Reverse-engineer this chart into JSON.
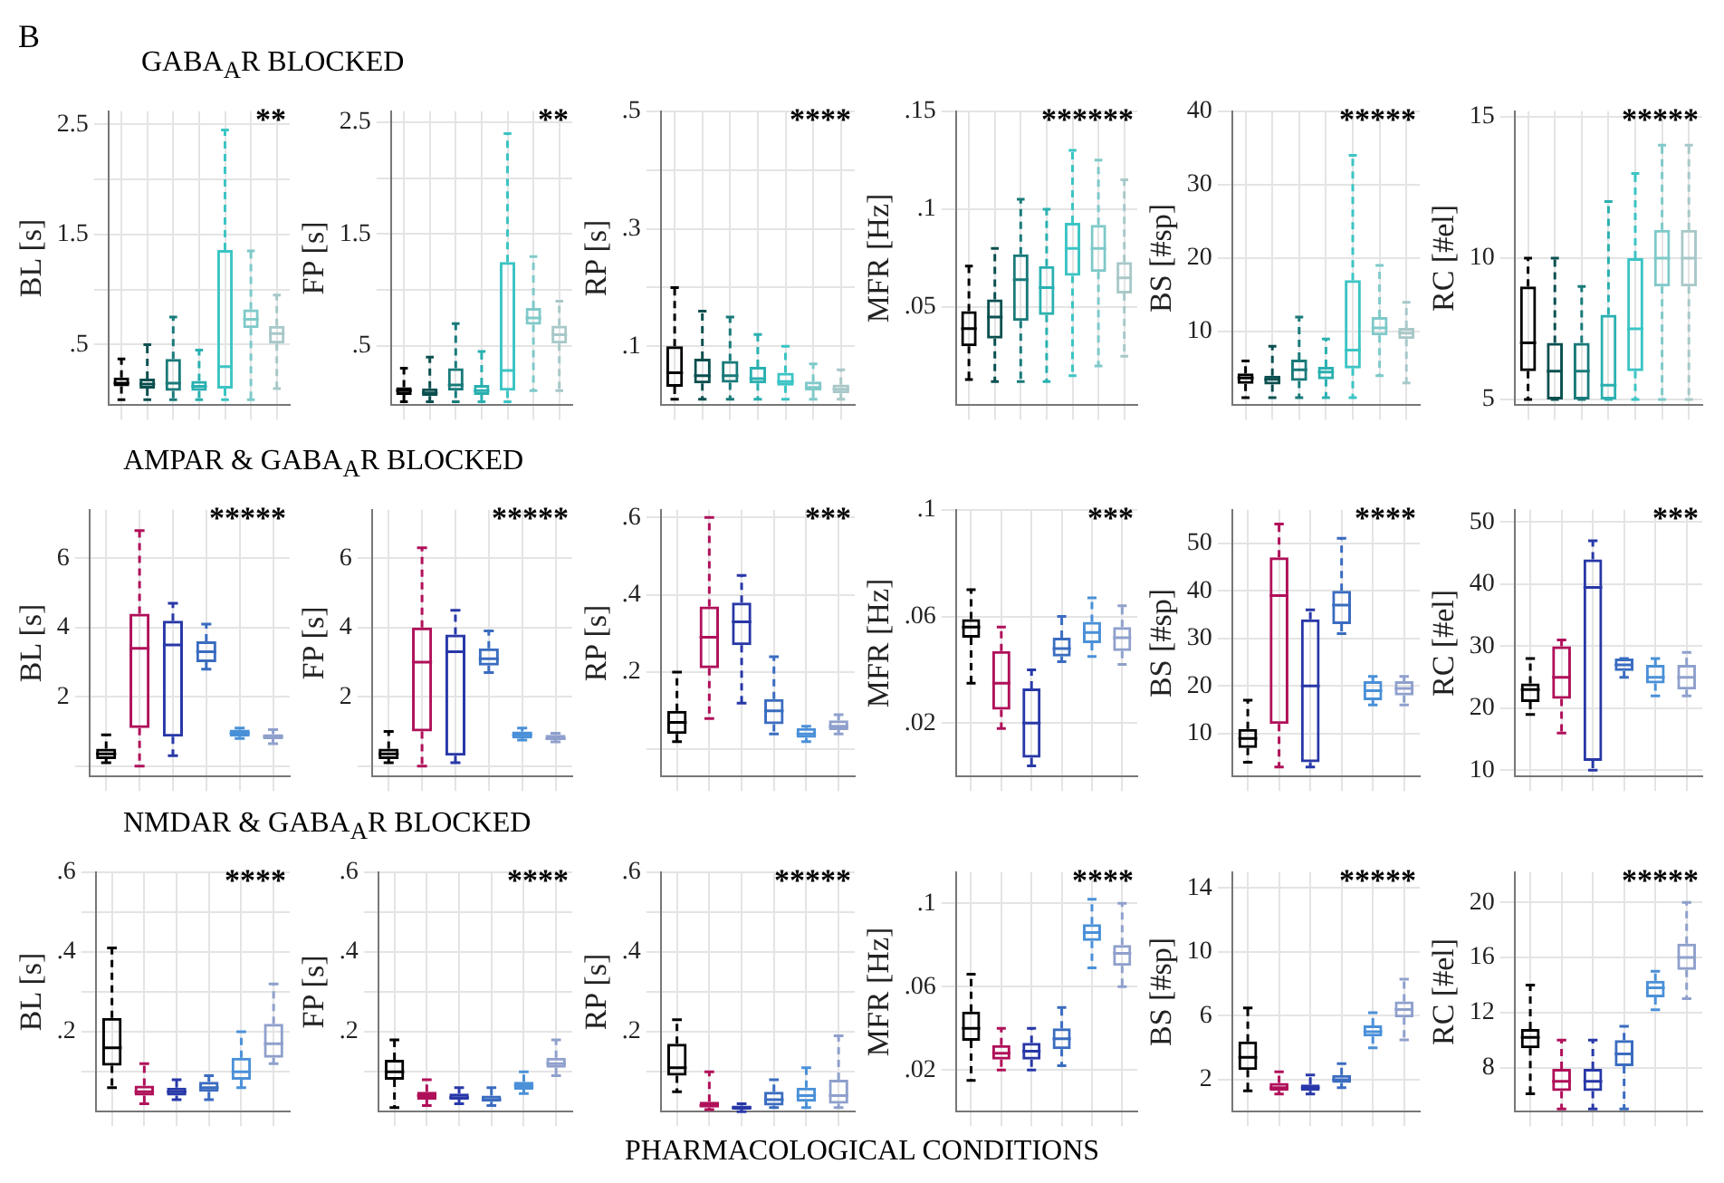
{
  "chart_data": [
    {
      "type": "box",
      "title": "GABA$_{A}$R BLOCKED",
      "ylabel": "BL [s]",
      "annotations": [
        "B",
        "**"
      ],
      "categories": [
        null,
        null,
        null,
        null,
        null,
        null,
        null
      ],
      "colors": [
        "#000000",
        "#0b4f4f",
        "#1a7a7a",
        "#2ab0b0",
        "#3cc4c4",
        "#7fc9c9",
        "#a8c8c8"
      ],
      "ylim": [
        -0.05,
        2.62
      ],
      "yticks": [
        {
          "value": 0.5,
          "label": ".5"
        },
        {
          "value": 1,
          "label": null
        },
        {
          "value": 1.5,
          "label": "1.5"
        },
        {
          "value": 2,
          "label": null
        },
        {
          "value": 2.5,
          "label": "2.5"
        }
      ],
      "grid": true,
      "tick_labels": "y",
      "boxes": [
        {
          "low": 0,
          "q1": 0.12,
          "median": 0.15,
          "q3": 0.2,
          "high": 0.37
        },
        {
          "low": 0,
          "q1": 0.1,
          "median": 0.14,
          "q3": 0.19,
          "high": 0.5
        },
        {
          "low": 0,
          "q1": 0.08,
          "median": 0.15,
          "q3": 0.37,
          "high": 0.75
        },
        {
          "low": 0,
          "q1": 0.08,
          "median": 0.12,
          "q3": 0.17,
          "high": 0.45
        },
        {
          "low": 0,
          "q1": 0.1,
          "median": 0.3,
          "q3": 1.36,
          "high": 2.45
        },
        {
          "low": 0,
          "q1": 0.65,
          "median": 0.73,
          "q3": 0.82,
          "high": 1.35
        },
        {
          "low": 0.1,
          "q1": 0.51,
          "median": 0.6,
          "q3": 0.67,
          "high": 0.95
        }
      ]
    },
    {
      "type": "box",
      "ylabel": "FP [s]",
      "annotations": [
        "**"
      ],
      "categories": [
        null,
        null,
        null,
        null,
        null,
        null,
        null
      ],
      "colors": [
        "#000000",
        "#0b4f4f",
        "#1a7a7a",
        "#2ab0b0",
        "#3cc4c4",
        "#7fc9c9",
        "#a8c8c8"
      ],
      "ylim": [
        -0.03,
        2.6
      ],
      "yticks": [
        {
          "value": 0.5,
          "label": ".5"
        },
        {
          "value": 1,
          "label": null
        },
        {
          "value": 1.5,
          "label": "1.5"
        },
        {
          "value": 2,
          "label": null
        },
        {
          "value": 2.5,
          "label": "2.5"
        }
      ],
      "grid": true,
      "tick_labels": "y",
      "boxes": [
        {
          "low": 0,
          "q1": 0.06,
          "median": 0.1,
          "q3": 0.13,
          "high": 0.3
        },
        {
          "low": 0,
          "q1": 0.05,
          "median": 0.08,
          "q3": 0.12,
          "high": 0.4
        },
        {
          "low": 0,
          "q1": 0.1,
          "median": 0.15,
          "q3": 0.3,
          "high": 0.7
        },
        {
          "low": 0,
          "q1": 0.06,
          "median": 0.1,
          "q3": 0.15,
          "high": 0.45
        },
        {
          "low": 0,
          "q1": 0.1,
          "median": 0.28,
          "q3": 1.25,
          "high": 2.4
        },
        {
          "low": 0.1,
          "q1": 0.69,
          "median": 0.75,
          "q3": 0.84,
          "high": 1.3
        },
        {
          "low": 0.1,
          "q1": 0.52,
          "median": 0.6,
          "q3": 0.68,
          "high": 0.9
        }
      ]
    },
    {
      "type": "box",
      "ylabel": "RP [s]",
      "annotations": [
        "****"
      ],
      "categories": [
        null,
        null,
        null,
        null,
        null,
        null,
        null
      ],
      "colors": [
        "#000000",
        "#0b4f4f",
        "#1a7a7a",
        "#2ab0b0",
        "#3cc4c4",
        "#7fc9c9",
        "#a8c8c8"
      ],
      "ylim": [
        0,
        0.5
      ],
      "yticks": [
        {
          "value": 0.1,
          "label": ".1"
        },
        {
          "value": 0.2,
          "label": null
        },
        {
          "value": 0.3,
          "label": ".3"
        },
        {
          "value": 0.4,
          "label": null
        },
        {
          "value": 0.5,
          "label": ".5"
        }
      ],
      "grid": true,
      "tick_labels": "y",
      "boxes": [
        {
          "low": 0.01,
          "q1": 0.031,
          "median": 0.055,
          "q3": 0.1,
          "high": 0.2
        },
        {
          "low": 0.01,
          "q1": 0.037,
          "median": 0.05,
          "q3": 0.079,
          "high": 0.16
        },
        {
          "low": 0.01,
          "q1": 0.038,
          "median": 0.05,
          "q3": 0.075,
          "high": 0.15
        },
        {
          "low": 0.01,
          "q1": 0.037,
          "median": 0.045,
          "q3": 0.065,
          "high": 0.12
        },
        {
          "low": 0.01,
          "q1": 0.033,
          "median": 0.04,
          "q3": 0.055,
          "high": 0.1
        },
        {
          "low": 0.01,
          "q1": 0.025,
          "median": 0.03,
          "q3": 0.04,
          "high": 0.07
        },
        {
          "low": 0.01,
          "q1": 0.02,
          "median": 0.027,
          "q3": 0.035,
          "high": 0.06
        }
      ]
    },
    {
      "type": "box",
      "ylabel": "MFR [Hz]",
      "annotations": [
        "******"
      ],
      "categories": [
        null,
        null,
        null,
        null,
        null,
        null,
        null
      ],
      "colors": [
        "#000000",
        "#0b4f4f",
        "#1a7a7a",
        "#2ab0b0",
        "#3cc4c4",
        "#7fc9c9",
        "#a8c8c8"
      ],
      "ylim": [
        0,
        0.15
      ],
      "yticks": [
        {
          "value": 0.05,
          "label": ".05"
        },
        {
          "value": 0.1,
          "label": ".1"
        },
        {
          "value": 0.15,
          "label": ".15"
        }
      ],
      "grid": true,
      "tick_labels": "y",
      "boxes": [
        {
          "low": 0.013,
          "q1": 0.03,
          "median": 0.039,
          "q3": 0.048,
          "high": 0.071
        },
        {
          "low": 0.012,
          "q1": 0.034,
          "median": 0.045,
          "q3": 0.054,
          "high": 0.08
        },
        {
          "low": 0.012,
          "q1": 0.043,
          "median": 0.064,
          "q3": 0.077,
          "high": 0.105
        },
        {
          "low": 0.012,
          "q1": 0.046,
          "median": 0.06,
          "q3": 0.071,
          "high": 0.1
        },
        {
          "low": 0.015,
          "q1": 0.066,
          "median": 0.08,
          "q3": 0.093,
          "high": 0.13
        },
        {
          "low": 0.02,
          "q1": 0.068,
          "median": 0.08,
          "q3": 0.092,
          "high": 0.125
        },
        {
          "low": 0.025,
          "q1": 0.057,
          "median": 0.065,
          "q3": 0.073,
          "high": 0.115
        }
      ]
    },
    {
      "type": "box",
      "ylabel": "BS [#sp]",
      "annotations": [
        "*****"
      ],
      "categories": [
        null,
        null,
        null,
        null,
        null,
        null,
        null
      ],
      "colors": [
        "#000000",
        "#0b4f4f",
        "#1a7a7a",
        "#2ab0b0",
        "#3cc4c4",
        "#7fc9c9",
        "#a8c8c8"
      ],
      "ylim": [
        0,
        40
      ],
      "yticks": [
        10,
        20,
        30,
        40
      ],
      "grid": true,
      "tick_labels": "y",
      "boxes": [
        {
          "low": 1,
          "q1": 2.9,
          "median": 3.7,
          "q3": 4.3,
          "high": 6
        },
        {
          "low": 1,
          "q1": 2.8,
          "median": 3.5,
          "q3": 4,
          "high": 8
        },
        {
          "low": 1,
          "q1": 3.3,
          "median": 4.8,
          "q3": 6.2,
          "high": 12
        },
        {
          "low": 1,
          "q1": 3.5,
          "median": 4.5,
          "q3": 5.2,
          "high": 9
        },
        {
          "low": 1,
          "q1": 5,
          "median": 7.5,
          "q3": 17,
          "high": 34
        },
        {
          "low": 4,
          "q1": 9.5,
          "median": 10.5,
          "q3": 12,
          "high": 19
        },
        {
          "low": 3,
          "q1": 9,
          "median": 9.8,
          "q3": 10.5,
          "high": 14
        }
      ]
    },
    {
      "type": "box",
      "ylabel": "RC [#el]",
      "annotations": [
        "*****"
      ],
      "categories": [
        null,
        null,
        null,
        null,
        null,
        null,
        null
      ],
      "colors": [
        "#000000",
        "#0b4f4f",
        "#1a7a7a",
        "#2ab0b0",
        "#3cc4c4",
        "#7fc9c9",
        "#a8c8c8"
      ],
      "ylim": [
        4.8,
        15.2
      ],
      "yticks": [
        5,
        10,
        15
      ],
      "grid": true,
      "tick_labels": "y",
      "boxes": [
        {
          "low": 5,
          "q1": 6,
          "median": 7,
          "q3": 9,
          "high": 10
        },
        {
          "low": 5,
          "q1": 5,
          "median": 6,
          "q3": 7,
          "high": 10
        },
        {
          "low": 5,
          "q1": 5,
          "median": 6,
          "q3": 7,
          "high": 9
        },
        {
          "low": 5,
          "q1": 5,
          "median": 5.5,
          "q3": 8,
          "high": 12
        },
        {
          "low": 5,
          "q1": 6,
          "median": 7.5,
          "q3": 10,
          "high": 13
        },
        {
          "low": 5,
          "q1": 9,
          "median": 10,
          "q3": 11,
          "high": 14
        },
        {
          "low": 5,
          "q1": 9,
          "median": 10,
          "q3": 11,
          "high": 14
        }
      ]
    },
    {
      "type": "box",
      "title": "AMPAR & GABA$_{A}$R BLOCKED",
      "ylabel": "BL [s]",
      "annotations": [
        "*****"
      ],
      "categories": [
        null,
        null,
        null,
        null,
        null,
        null
      ],
      "colors": [
        "#000000",
        "#b0105a",
        "#2838a8",
        "#3a6cc0",
        "#4a90d8",
        "#8fa0cc"
      ],
      "ylim": [
        -0.3,
        7.4
      ],
      "yticks": [
        {
          "value": 0,
          "label": null
        },
        {
          "value": 2,
          "label": "2"
        },
        {
          "value": 4,
          "label": "4"
        },
        {
          "value": 6,
          "label": "6"
        }
      ],
      "grid": true,
      "tick_labels": "y",
      "boxes": [
        {
          "low": 0.1,
          "q1": 0.2,
          "median": 0.35,
          "q3": 0.5,
          "high": 0.9
        },
        {
          "low": 0,
          "q1": 1.1,
          "median": 3.4,
          "q3": 4.4,
          "high": 6.8
        },
        {
          "low": 0.3,
          "q1": 0.85,
          "median": 3.5,
          "q3": 4.2,
          "high": 4.7
        },
        {
          "low": 2.8,
          "q1": 3,
          "median": 3.3,
          "q3": 3.6,
          "high": 4.1
        },
        {
          "low": 0.8,
          "q1": 0.85,
          "median": 0.95,
          "q3": 1.05,
          "high": 1.1
        },
        {
          "low": 0.65,
          "q1": 0.78,
          "median": 0.85,
          "q3": 0.92,
          "high": 1.05
        }
      ]
    },
    {
      "type": "box",
      "ylabel": "FP [s]",
      "annotations": [
        "*****"
      ],
      "categories": [
        null,
        null,
        null,
        null,
        null,
        null
      ],
      "colors": [
        "#000000",
        "#b0105a",
        "#2838a8",
        "#3a6cc0",
        "#4a90d8",
        "#8fa0cc"
      ],
      "ylim": [
        -0.3,
        7.4
      ],
      "yticks": [
        {
          "value": 0,
          "label": null
        },
        {
          "value": 2,
          "label": "2"
        },
        {
          "value": 4,
          "label": "4"
        },
        {
          "value": 6,
          "label": "6"
        }
      ],
      "grid": true,
      "tick_labels": "y",
      "boxes": [
        {
          "low": 0.1,
          "q1": 0.2,
          "median": 0.35,
          "q3": 0.5,
          "high": 1
        },
        {
          "low": 0,
          "q1": 1,
          "median": 3,
          "q3": 4,
          "high": 6.3
        },
        {
          "low": 0.1,
          "q1": 0.3,
          "median": 3.3,
          "q3": 3.8,
          "high": 4.5
        },
        {
          "low": 2.7,
          "q1": 2.9,
          "median": 3.1,
          "q3": 3.4,
          "high": 3.9
        },
        {
          "low": 0.75,
          "q1": 0.8,
          "median": 0.9,
          "q3": 1,
          "high": 1.1
        },
        {
          "low": 0.7,
          "q1": 0.75,
          "median": 0.8,
          "q3": 0.9,
          "high": 0.95
        }
      ]
    },
    {
      "type": "box",
      "ylabel": "RP [s]",
      "annotations": [
        "***"
      ],
      "categories": [
        null,
        null,
        null,
        null,
        null,
        null
      ],
      "colors": [
        "#000000",
        "#b0105a",
        "#2838a8",
        "#3a6cc0",
        "#4a90d8",
        "#8fa0cc"
      ],
      "ylim": [
        -0.07,
        0.62
      ],
      "yticks": [
        {
          "value": 0,
          "label": null
        },
        {
          "value": 0.2,
          "label": ".2"
        },
        {
          "value": 0.4,
          "label": ".4"
        },
        {
          "value": 0.6,
          "label": ".6"
        }
      ],
      "grid": true,
      "tick_labels": "y",
      "boxes": [
        {
          "low": 0.02,
          "q1": 0.04,
          "median": 0.07,
          "q3": 0.1,
          "high": 0.2
        },
        {
          "low": 0.08,
          "q1": 0.21,
          "median": 0.29,
          "q3": 0.37,
          "high": 0.6
        },
        {
          "low": 0.12,
          "q1": 0.27,
          "median": 0.33,
          "q3": 0.38,
          "high": 0.45
        },
        {
          "low": 0.04,
          "q1": 0.065,
          "median": 0.1,
          "q3": 0.13,
          "high": 0.24
        },
        {
          "low": 0.02,
          "q1": 0.03,
          "median": 0.04,
          "q3": 0.055,
          "high": 0.06
        },
        {
          "low": 0.04,
          "q1": 0.05,
          "median": 0.06,
          "q3": 0.075,
          "high": 0.09
        }
      ]
    },
    {
      "type": "box",
      "ylabel": "MFR [Hz]",
      "annotations": [
        "***"
      ],
      "categories": [
        null,
        null,
        null,
        null,
        null,
        null
      ],
      "colors": [
        "#000000",
        "#b0105a",
        "#2838a8",
        "#3a6cc0",
        "#4a90d8",
        "#8fa0cc"
      ],
      "ylim": [
        0,
        0.1
      ],
      "yticks": [
        {
          "value": 0.02,
          "label": ".02"
        },
        {
          "value": 0.06,
          "label": ".06"
        },
        {
          "value": 0.1,
          "label": ".1"
        }
      ],
      "grid": true,
      "tick_labels": "y",
      "boxes": [
        {
          "low": 0.035,
          "q1": 0.052,
          "median": 0.056,
          "q3": 0.059,
          "high": 0.07
        },
        {
          "low": 0.018,
          "q1": 0.025,
          "median": 0.035,
          "q3": 0.047,
          "high": 0.056
        },
        {
          "low": 0.004,
          "q1": 0.007,
          "median": 0.02,
          "q3": 0.033,
          "high": 0.04
        },
        {
          "low": 0.043,
          "q1": 0.045,
          "median": 0.048,
          "q3": 0.052,
          "high": 0.06
        },
        {
          "low": 0.045,
          "q1": 0.05,
          "median": 0.054,
          "q3": 0.058,
          "high": 0.067
        },
        {
          "low": 0.042,
          "q1": 0.047,
          "median": 0.052,
          "q3": 0.056,
          "high": 0.064
        }
      ]
    },
    {
      "type": "box",
      "ylabel": "BS [#sp]",
      "annotations": [
        "****"
      ],
      "categories": [
        null,
        null,
        null,
        null,
        null,
        null
      ],
      "colors": [
        "#000000",
        "#b0105a",
        "#2838a8",
        "#3a6cc0",
        "#4a90d8",
        "#8fa0cc"
      ],
      "ylim": [
        1,
        57
      ],
      "yticks": [
        10,
        20,
        30,
        40,
        50
      ],
      "grid": true,
      "tick_labels": "y",
      "boxes": [
        {
          "low": 4,
          "q1": 7,
          "median": 9,
          "q3": 11,
          "high": 17
        },
        {
          "low": 3,
          "q1": 12,
          "median": 39,
          "q3": 47,
          "high": 54
        },
        {
          "low": 3,
          "q1": 4,
          "median": 20,
          "q3": 34,
          "high": 36
        },
        {
          "low": 31,
          "q1": 33,
          "median": 37,
          "q3": 40,
          "high": 51
        },
        {
          "low": 16,
          "q1": 17,
          "median": 19,
          "q3": 21,
          "high": 22
        },
        {
          "low": 16,
          "q1": 18,
          "median": 19.5,
          "q3": 21,
          "high": 22
        }
      ]
    },
    {
      "type": "box",
      "ylabel": "RC [#el]",
      "annotations": [
        "***"
      ],
      "categories": [
        null,
        null,
        null,
        null,
        null,
        null
      ],
      "colors": [
        "#000000",
        "#b0105a",
        "#2838a8",
        "#3a6cc0",
        "#4a90d8",
        "#8fa0cc"
      ],
      "ylim": [
        9,
        52
      ],
      "yticks": [
        10,
        20,
        30,
        40,
        50
      ],
      "grid": true,
      "tick_labels": "y",
      "boxes": [
        {
          "low": 19,
          "q1": 21,
          "median": 23,
          "q3": 24,
          "high": 28
        },
        {
          "low": 16,
          "q1": 21.5,
          "median": 25,
          "q3": 30,
          "high": 31
        },
        {
          "low": 10,
          "q1": 11.5,
          "median": 39.5,
          "q3": 44,
          "high": 47
        },
        {
          "low": 25,
          "q1": 26,
          "median": 27,
          "q3": 28,
          "high": 28
        },
        {
          "low": 22,
          "q1": 24,
          "median": 25,
          "q3": 27,
          "high": 28
        },
        {
          "low": 22,
          "q1": 23,
          "median": 25,
          "q3": 27,
          "high": 29
        }
      ]
    },
    {
      "type": "box",
      "title": "NMDAR & GABA$_{A}$R BLOCKED",
      "ylabel": "BL [s]",
      "annotations": [
        "****"
      ],
      "categories": [
        null,
        null,
        null,
        null,
        null,
        null
      ],
      "colors": [
        "#000000",
        "#b0105a",
        "#2838a8",
        "#3a6cc0",
        "#4a90d8",
        "#8fa0cc"
      ],
      "ylim": [
        0,
        0.6
      ],
      "yticks": [
        {
          "value": 0.1,
          "label": null
        },
        {
          "value": 0.2,
          "label": ".2"
        },
        {
          "value": 0.3,
          "label": null
        },
        {
          "value": 0.4,
          "label": ".4"
        },
        {
          "value": 0.5,
          "label": null
        },
        {
          "value": 0.6,
          "label": ".6"
        }
      ],
      "grid": true,
      "tick_labels": "y",
      "boxes": [
        {
          "low": 0.06,
          "q1": 0.115,
          "median": 0.16,
          "q3": 0.235,
          "high": 0.41
        },
        {
          "low": 0.02,
          "q1": 0.04,
          "median": 0.05,
          "q3": 0.065,
          "high": 0.12
        },
        {
          "low": 0.03,
          "q1": 0.04,
          "median": 0.05,
          "q3": 0.06,
          "high": 0.08
        },
        {
          "low": 0.03,
          "q1": 0.05,
          "median": 0.06,
          "q3": 0.075,
          "high": 0.09
        },
        {
          "low": 0.06,
          "q1": 0.08,
          "median": 0.1,
          "q3": 0.135,
          "high": 0.2
        },
        {
          "low": 0.12,
          "q1": 0.135,
          "median": 0.17,
          "q3": 0.22,
          "high": 0.32
        }
      ]
    },
    {
      "type": "box",
      "ylabel": "FP [s]",
      "annotations": [
        "****"
      ],
      "categories": [
        null,
        null,
        null,
        null,
        null,
        null
      ],
      "colors": [
        "#000000",
        "#b0105a",
        "#2838a8",
        "#3a6cc0",
        "#4a90d8",
        "#8fa0cc"
      ],
      "ylim": [
        0,
        0.6
      ],
      "yticks": [
        {
          "value": 0.1,
          "label": null
        },
        {
          "value": 0.2,
          "label": ".2"
        },
        {
          "value": 0.3,
          "label": null
        },
        {
          "value": 0.4,
          "label": ".4"
        },
        {
          "value": 0.5,
          "label": null
        },
        {
          "value": 0.6,
          "label": ".6"
        }
      ],
      "grid": true,
      "tick_labels": "y",
      "boxes": [
        {
          "low": 0.01,
          "q1": 0.08,
          "median": 0.1,
          "q3": 0.13,
          "high": 0.18
        },
        {
          "low": 0.015,
          "q1": 0.03,
          "median": 0.04,
          "q3": 0.05,
          "high": 0.08
        },
        {
          "low": 0.02,
          "q1": 0.03,
          "median": 0.035,
          "q3": 0.045,
          "high": 0.06
        },
        {
          "low": 0.015,
          "q1": 0.025,
          "median": 0.03,
          "q3": 0.04,
          "high": 0.06
        },
        {
          "low": 0.045,
          "q1": 0.055,
          "median": 0.065,
          "q3": 0.075,
          "high": 0.1
        },
        {
          "low": 0.09,
          "q1": 0.11,
          "median": 0.12,
          "q3": 0.135,
          "high": 0.18
        }
      ]
    },
    {
      "type": "box",
      "ylabel": "RP [s]",
      "xlabel": "PHARMACOLOGICAL CONDITIONS",
      "annotations": [
        "*****"
      ],
      "categories": [
        null,
        null,
        null,
        null,
        null,
        null
      ],
      "colors": [
        "#000000",
        "#b0105a",
        "#2838a8",
        "#3a6cc0",
        "#4a90d8",
        "#8fa0cc"
      ],
      "ylim": [
        0,
        0.6
      ],
      "yticks": [
        {
          "value": 0.1,
          "label": null
        },
        {
          "value": 0.2,
          "label": ".2"
        },
        {
          "value": 0.3,
          "label": null
        },
        {
          "value": 0.4,
          "label": ".4"
        },
        {
          "value": 0.5,
          "label": null
        },
        {
          "value": 0.6,
          "label": ".6"
        }
      ],
      "grid": true,
      "tick_labels": "y",
      "boxes": [
        {
          "low": 0.05,
          "q1": 0.09,
          "median": 0.11,
          "q3": 0.17,
          "high": 0.23
        },
        {
          "low": 0.005,
          "q1": 0.01,
          "median": 0.015,
          "q3": 0.025,
          "high": 0.1
        },
        {
          "low": 0,
          "q1": 0.005,
          "median": 0.01,
          "q3": 0.015,
          "high": 0.02
        },
        {
          "low": 0.01,
          "q1": 0.015,
          "median": 0.03,
          "q3": 0.05,
          "high": 0.08
        },
        {
          "low": 0.01,
          "q1": 0.025,
          "median": 0.04,
          "q3": 0.06,
          "high": 0.11
        },
        {
          "low": 0.01,
          "q1": 0.02,
          "median": 0.04,
          "q3": 0.08,
          "high": 0.19
        }
      ]
    },
    {
      "type": "box",
      "ylabel": "MFR [Hz]",
      "annotations": [
        "****"
      ],
      "categories": [
        null,
        null,
        null,
        null,
        null,
        null
      ],
      "colors": [
        "#000000",
        "#b0105a",
        "#2838a8",
        "#3a6cc0",
        "#4a90d8",
        "#8fa0cc"
      ],
      "ylim": [
        0,
        0.115
      ],
      "yticks": [
        {
          "value": 0.02,
          "label": ".02"
        },
        {
          "value": 0.06,
          "label": ".06"
        },
        {
          "value": 0.1,
          "label": ".1"
        }
      ],
      "grid": true,
      "tick_labels": "y",
      "boxes": [
        {
          "low": 0.015,
          "q1": 0.034,
          "median": 0.04,
          "q3": 0.048,
          "high": 0.066
        },
        {
          "low": 0.02,
          "q1": 0.025,
          "median": 0.028,
          "q3": 0.032,
          "high": 0.04
        },
        {
          "low": 0.02,
          "q1": 0.025,
          "median": 0.029,
          "q3": 0.033,
          "high": 0.04
        },
        {
          "low": 0.022,
          "q1": 0.03,
          "median": 0.035,
          "q3": 0.04,
          "high": 0.05
        },
        {
          "low": 0.069,
          "q1": 0.082,
          "median": 0.086,
          "q3": 0.09,
          "high": 0.102
        },
        {
          "low": 0.06,
          "q1": 0.07,
          "median": 0.076,
          "q3": 0.08,
          "high": 0.1
        }
      ]
    },
    {
      "type": "box",
      "ylabel": "BS [#sp]",
      "annotations": [
        "*****"
      ],
      "categories": [
        null,
        null,
        null,
        null,
        null,
        null
      ],
      "colors": [
        "#000000",
        "#b0105a",
        "#2838a8",
        "#3a6cc0",
        "#4a90d8",
        "#8fa0cc"
      ],
      "ylim": [
        0,
        15
      ],
      "yticks": [
        2,
        6,
        10,
        14
      ],
      "grid": true,
      "tick_labels": "y",
      "boxes": [
        {
          "low": 1.3,
          "q1": 2.6,
          "median": 3.4,
          "q3": 4.4,
          "high": 6.5
        },
        {
          "low": 1.1,
          "q1": 1.3,
          "median": 1.5,
          "q3": 1.8,
          "high": 2.5
        },
        {
          "low": 1.1,
          "q1": 1.3,
          "median": 1.5,
          "q3": 1.7,
          "high": 2.3
        },
        {
          "low": 1.5,
          "q1": 1.8,
          "median": 2,
          "q3": 2.3,
          "high": 3
        },
        {
          "low": 4,
          "q1": 4.7,
          "median": 5,
          "q3": 5.4,
          "high": 6.2
        },
        {
          "low": 4.5,
          "q1": 5.9,
          "median": 6.4,
          "q3": 6.9,
          "high": 8.3
        }
      ]
    },
    {
      "type": "box",
      "ylabel": "RC [#el]",
      "annotations": [
        "*****"
      ],
      "categories": [
        null,
        null,
        null,
        null,
        null,
        null
      ],
      "colors": [
        "#000000",
        "#b0105a",
        "#2838a8",
        "#3a6cc0",
        "#4a90d8",
        "#8fa0cc"
      ],
      "ylim": [
        4.8,
        22.2
      ],
      "yticks": [
        8,
        12,
        16,
        20
      ],
      "grid": true,
      "tick_labels": "y",
      "boxes": [
        {
          "low": 6.1,
          "q1": 9.4,
          "median": 10.2,
          "q3": 10.8,
          "high": 14
        },
        {
          "low": 5,
          "q1": 6.3,
          "median": 7,
          "q3": 7.9,
          "high": 10
        },
        {
          "low": 5,
          "q1": 6.3,
          "median": 7,
          "q3": 7.9,
          "high": 10
        },
        {
          "low": 5,
          "q1": 8.1,
          "median": 9,
          "q3": 10,
          "high": 11
        },
        {
          "low": 12.2,
          "q1": 13.1,
          "median": 13.8,
          "q3": 14.3,
          "high": 15
        },
        {
          "low": 13,
          "q1": 15.1,
          "median": 16,
          "q3": 17,
          "high": 20
        }
      ]
    }
  ]
}
